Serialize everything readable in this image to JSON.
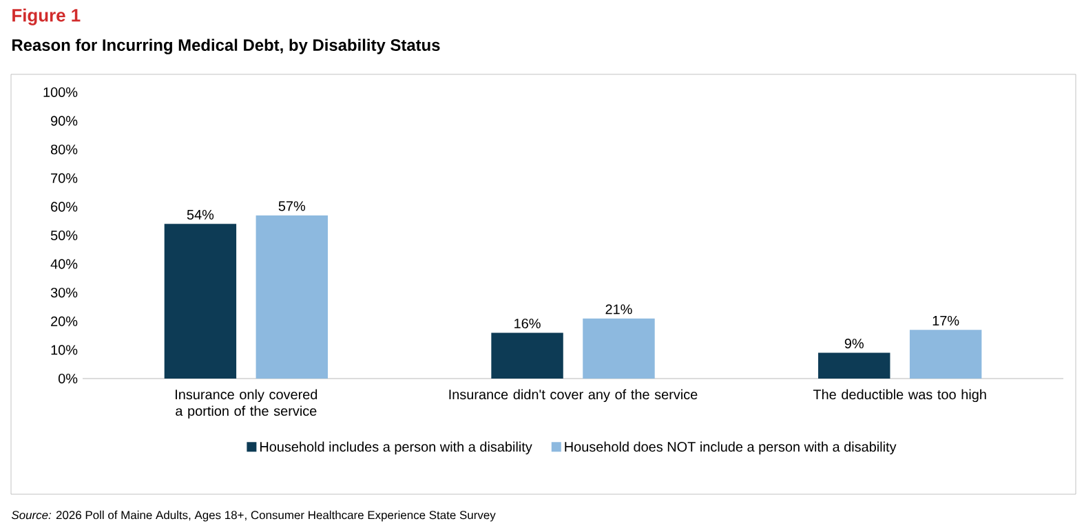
{
  "chart_data": {
    "type": "bar",
    "title": "Figure 1",
    "subtitle": "Reason for Incurring Medical Debt, by Disability Status",
    "categories": [
      "Insurance only covered a portion of the service",
      "Insurance didn't cover any of the service",
      "The deductible was too high"
    ],
    "series": [
      {
        "name": "Household includes a person with a disability",
        "color": "#0d3b55",
        "values": [
          54,
          16,
          9
        ],
        "value_labels": [
          "54%",
          "16%",
          "9%"
        ]
      },
      {
        "name": "Household does NOT include a person with a disability",
        "color": "#8db9df",
        "values": [
          57,
          21,
          17
        ],
        "value_labels": [
          "57%",
          "21%",
          "17%"
        ]
      }
    ],
    "ylim": [
      0,
      100
    ],
    "yticks": [
      {
        "value": 0,
        "label": "0%"
      },
      {
        "value": 10,
        "label": "10%"
      },
      {
        "value": 20,
        "label": "20%"
      },
      {
        "value": 30,
        "label": "30%"
      },
      {
        "value": 40,
        "label": "40%"
      },
      {
        "value": 50,
        "label": "50%"
      },
      {
        "value": 60,
        "label": "60%"
      },
      {
        "value": 70,
        "label": "70%"
      },
      {
        "value": 80,
        "label": "80%"
      },
      {
        "value": 90,
        "label": "90%"
      },
      {
        "value": 100,
        "label": "100%"
      }
    ],
    "legend": "bottom",
    "annotations": [
      "*Source:* 2026 Poll of Maine Adults, Ages 18+, Consumer Healthcare Experience State Survey"
    ]
  }
}
